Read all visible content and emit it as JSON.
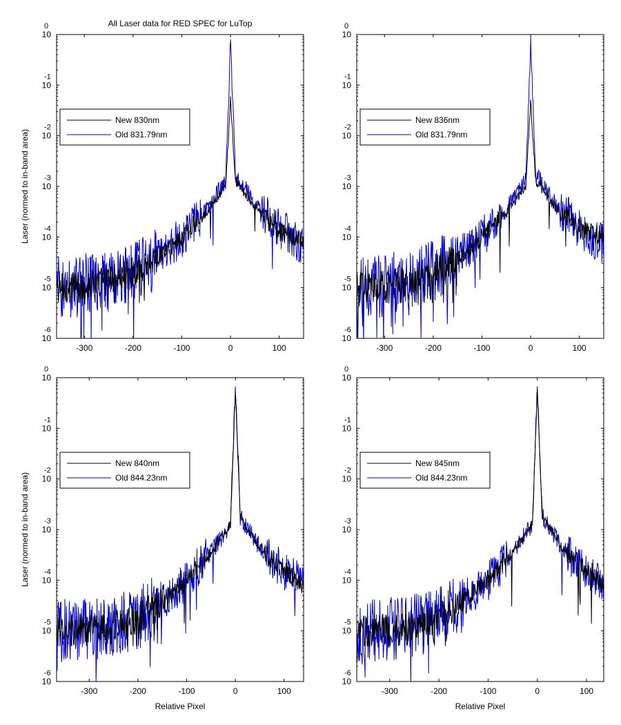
{
  "figure_title": "All Laser data for RED SPEC for LuTop",
  "chart_data": [
    {
      "type": "line",
      "title": "All Laser data for RED SPEC for LuTop",
      "xlabel": "",
      "ylabel": "Laser (normed to in-band area)",
      "y_scale": "log",
      "xlim": [
        -357,
        150
      ],
      "ylim": [
        1e-06,
        1
      ],
      "x_ticks": [
        -300,
        -200,
        -100,
        0,
        100
      ],
      "y_ticks": [
        -6,
        -5,
        -4,
        -3,
        -2,
        -1,
        0
      ],
      "grid": false,
      "legend_position": "middle-left",
      "series": [
        {
          "name": "New 830nm",
          "color": "#000000",
          "peak": 0.05,
          "floor": 1e-05,
          "noise": 0.22,
          "x": [
            -357,
            -300,
            -250,
            -200,
            -150,
            -100,
            -50,
            -10,
            0,
            10,
            50,
            100,
            150
          ],
          "y": [
            1e-05,
            1.1e-05,
            1.4e-05,
            2e-05,
            4e-05,
            0.0001,
            0.0003,
            0.001,
            0.05,
            0.0013,
            0.0004,
            0.00013,
            8e-05
          ]
        },
        {
          "name": "Old 831.79nm",
          "color": "#0000cc",
          "peak": 0.7,
          "floor": 1e-05,
          "noise": 0.45,
          "x": [
            -357,
            -300,
            -250,
            -200,
            -150,
            -100,
            -50,
            -10,
            0,
            10,
            50,
            100,
            150
          ],
          "y": [
            1e-05,
            1.1e-05,
            1.4e-05,
            2e-05,
            4e-05,
            0.0001,
            0.00035,
            0.0013,
            0.7,
            0.0018,
            0.00045,
            0.00015,
            7e-05
          ]
        }
      ]
    },
    {
      "type": "line",
      "title": "",
      "xlabel": "",
      "ylabel": "",
      "y_scale": "log",
      "xlim": [
        -357,
        150
      ],
      "ylim": [
        1e-06,
        1
      ],
      "x_ticks": [
        -300,
        -200,
        -100,
        0,
        100
      ],
      "y_ticks": [
        -6,
        -5,
        -4,
        -3,
        -2,
        -1,
        0
      ],
      "grid": false,
      "legend_position": "middle-left",
      "series": [
        {
          "name": "New 836nm",
          "color": "#000000",
          "peak": 0.05,
          "floor": 1e-05,
          "noise": 0.22,
          "x": [
            -357,
            -300,
            -250,
            -200,
            -150,
            -100,
            -50,
            -10,
            0,
            10,
            50,
            100,
            150
          ],
          "y": [
            1e-05,
            1.1e-05,
            1.4e-05,
            2e-05,
            4e-05,
            0.0001,
            0.0003,
            0.001,
            0.05,
            0.0013,
            0.0004,
            0.00015,
            0.0001
          ]
        },
        {
          "name": "Old 831.79nm",
          "color": "#0000cc",
          "peak": 0.7,
          "floor": 1e-05,
          "noise": 0.45,
          "x": [
            -357,
            -300,
            -250,
            -200,
            -150,
            -100,
            -50,
            -10,
            0,
            10,
            50,
            100,
            150
          ],
          "y": [
            1e-05,
            1.1e-05,
            1.4e-05,
            2e-05,
            4e-05,
            0.0001,
            0.00035,
            0.0013,
            0.7,
            0.0018,
            0.00045,
            0.00015,
            7e-05
          ]
        }
      ]
    },
    {
      "type": "line",
      "title": "",
      "xlabel": "Relative Pixel",
      "ylabel": "Laser (normed to in-band area)",
      "y_scale": "log",
      "xlim": [
        -367,
        140
      ],
      "ylim": [
        1e-06,
        1
      ],
      "x_ticks": [
        -300,
        -200,
        -100,
        0,
        100
      ],
      "y_ticks": [
        -6,
        -5,
        -4,
        -3,
        -2,
        -1,
        0
      ],
      "grid": false,
      "legend_position": "middle-left",
      "series": [
        {
          "name": "New 840nm",
          "color": "#000000",
          "peak": 0.6,
          "floor": 1e-05,
          "noise": 0.22,
          "x": [
            -367,
            -300,
            -250,
            -200,
            -150,
            -100,
            -50,
            -10,
            0,
            10,
            50,
            100,
            140
          ],
          "y": [
            1e-05,
            1.1e-05,
            1.3e-05,
            1.8e-05,
            4e-05,
            0.0001,
            0.00035,
            0.0013,
            0.6,
            0.0018,
            0.00045,
            0.00015,
            8e-05
          ]
        },
        {
          "name": "Old 844.23nm",
          "color": "#0000cc",
          "peak": 0.7,
          "floor": 1e-05,
          "noise": 0.45,
          "x": [
            -367,
            -300,
            -250,
            -200,
            -150,
            -100,
            -50,
            -10,
            0,
            10,
            50,
            100,
            140
          ],
          "y": [
            1e-05,
            1.1e-05,
            1.3e-05,
            1.8e-05,
            4e-05,
            0.0001,
            0.00035,
            0.0013,
            0.7,
            0.0018,
            0.00045,
            0.00015,
            8e-05
          ]
        }
      ]
    },
    {
      "type": "line",
      "title": "",
      "xlabel": "Relative Pixel",
      "ylabel": "",
      "y_scale": "log",
      "xlim": [
        -367,
        135
      ],
      "ylim": [
        1e-06,
        1
      ],
      "x_ticks": [
        -300,
        -200,
        -100,
        0,
        100
      ],
      "y_ticks": [
        -6,
        -5,
        -4,
        -3,
        -2,
        -1,
        0
      ],
      "grid": false,
      "legend_position": "middle-left",
      "series": [
        {
          "name": "New 845nm",
          "color": "#000000",
          "peak": 0.6,
          "floor": 1e-05,
          "noise": 0.22,
          "x": [
            -367,
            -300,
            -250,
            -200,
            -150,
            -100,
            -50,
            -10,
            0,
            10,
            50,
            100,
            135
          ],
          "y": [
            1e-05,
            1.1e-05,
            1.3e-05,
            1.8e-05,
            4e-05,
            0.0001,
            0.00035,
            0.0013,
            0.6,
            0.0018,
            0.00045,
            0.00015,
            8e-05
          ]
        },
        {
          "name": "Old 844.23nm",
          "color": "#0000cc",
          "peak": 0.7,
          "floor": 1e-05,
          "noise": 0.45,
          "x": [
            -367,
            -300,
            -250,
            -200,
            -150,
            -100,
            -50,
            -10,
            0,
            10,
            50,
            100,
            135
          ],
          "y": [
            1e-05,
            1.1e-05,
            1.3e-05,
            1.8e-05,
            4e-05,
            0.0001,
            0.00035,
            0.0013,
            0.7,
            0.0018,
            0.00045,
            0.00015,
            8e-05
          ]
        }
      ]
    }
  ]
}
